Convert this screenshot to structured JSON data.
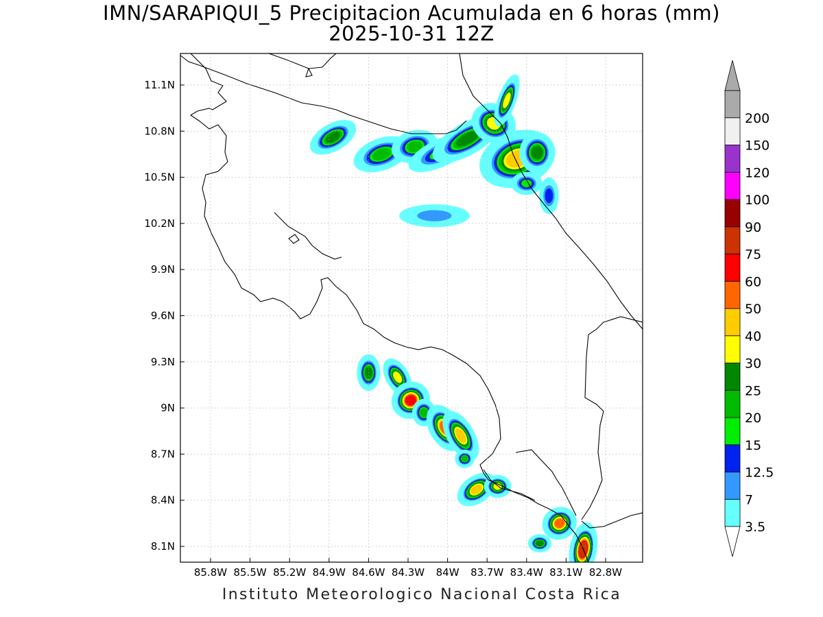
{
  "header": {
    "title": "IMN/SARAPIQUI_5 Precipitacion Acumulada en 6 horas (mm)",
    "subtitle": "2025-10-31 12Z"
  },
  "footer": {
    "credit": "Instituto Meteorologico Nacional Costa Rica"
  },
  "map": {
    "lat_range": [
      8.0,
      11.3
    ],
    "lon_range": [
      -86.1,
      -83.1
    ],
    "lat_ticks": [
      {
        "value": 11.1,
        "label": "11.1N"
      },
      {
        "value": 10.8,
        "label": "10.8N"
      },
      {
        "value": 10.5,
        "label": "10.5N"
      },
      {
        "value": 10.2,
        "label": "10.2N"
      },
      {
        "value": 9.9,
        "label": "9.9N"
      },
      {
        "value": 9.6,
        "label": "9.6N"
      },
      {
        "value": 9.3,
        "label": "9.3N"
      },
      {
        "value": 9.0,
        "label": "9N"
      },
      {
        "value": 8.7,
        "label": "8.7N"
      },
      {
        "value": 8.4,
        "label": "8.4N"
      },
      {
        "value": 8.1,
        "label": "8.1N"
      }
    ],
    "lon_ticks": [
      {
        "value": -85.8,
        "label": "85.8W"
      },
      {
        "value": -85.5,
        "label": "85.5W"
      },
      {
        "value": -85.2,
        "label": "85.2W"
      },
      {
        "value": -84.9,
        "label": "84.9W"
      },
      {
        "value": -84.6,
        "label": "84.6W"
      },
      {
        "value": -84.3,
        "label": "84.3W"
      },
      {
        "value": -84.0,
        "label": "84W"
      },
      {
        "value": -83.7,
        "label": "83.7W"
      },
      {
        "value": -83.4,
        "label": "83.4W"
      },
      {
        "value": -83.1,
        "label": "83.1W"
      },
      {
        "value": -82.8,
        "label": "82.8W"
      }
    ],
    "grid": "dotted",
    "precip_cells": [
      {
        "lon": -84.87,
        "lat": 10.76,
        "rx": 0.13,
        "ry": 0.06,
        "rot": -30,
        "max": 27
      },
      {
        "lon": -84.5,
        "lat": 10.65,
        "rx": 0.15,
        "ry": 0.07,
        "rot": -20,
        "max": 20
      },
      {
        "lon": -84.25,
        "lat": 10.7,
        "rx": 0.12,
        "ry": 0.07,
        "rot": -15,
        "max": 22
      },
      {
        "lon": -84.05,
        "lat": 10.66,
        "rx": 0.18,
        "ry": 0.06,
        "rot": -25,
        "max": 15
      },
      {
        "lon": -83.85,
        "lat": 10.75,
        "rx": 0.2,
        "ry": 0.07,
        "rot": -30,
        "max": 26
      },
      {
        "lon": -83.65,
        "lat": 10.85,
        "rx": 0.1,
        "ry": 0.1,
        "rot": -60,
        "max": 38
      },
      {
        "lon": -83.55,
        "lat": 11.0,
        "rx": 0.14,
        "ry": 0.04,
        "rot": -70,
        "max": 32
      },
      {
        "lon": -83.47,
        "lat": 10.62,
        "rx": 0.2,
        "ry": 0.12,
        "rot": -20,
        "max": 42
      },
      {
        "lon": -83.32,
        "lat": 10.66,
        "rx": 0.09,
        "ry": 0.09,
        "rot": 0,
        "max": 28
      },
      {
        "lon": -83.4,
        "lat": 10.46,
        "rx": 0.08,
        "ry": 0.05,
        "rot": 0,
        "max": 18
      },
      {
        "lon": -83.23,
        "lat": 10.38,
        "rx": 0.05,
        "ry": 0.08,
        "rot": 0,
        "max": 14
      },
      {
        "lon": -84.1,
        "lat": 10.25,
        "rx": 0.18,
        "ry": 0.05,
        "rot": 0,
        "max": 10
      },
      {
        "lon": -84.6,
        "lat": 9.23,
        "rx": 0.06,
        "ry": 0.08,
        "rot": 0,
        "max": 28
      },
      {
        "lon": -84.38,
        "lat": 9.2,
        "rx": 0.06,
        "ry": 0.09,
        "rot": -30,
        "max": 34
      },
      {
        "lon": -84.28,
        "lat": 9.05,
        "rx": 0.1,
        "ry": 0.08,
        "rot": -30,
        "max": 62
      },
      {
        "lon": -84.18,
        "lat": 8.97,
        "rx": 0.06,
        "ry": 0.06,
        "rot": 0,
        "max": 24
      },
      {
        "lon": -84.02,
        "lat": 8.87,
        "rx": 0.08,
        "ry": 0.11,
        "rot": -30,
        "max": 52
      },
      {
        "lon": -83.9,
        "lat": 8.82,
        "rx": 0.07,
        "ry": 0.12,
        "rot": -30,
        "max": 48
      },
      {
        "lon": -83.87,
        "lat": 8.67,
        "rx": 0.05,
        "ry": 0.04,
        "rot": 0,
        "max": 20
      },
      {
        "lon": -83.78,
        "lat": 8.47,
        "rx": 0.11,
        "ry": 0.06,
        "rot": -35,
        "max": 45
      },
      {
        "lon": -83.62,
        "lat": 8.49,
        "rx": 0.07,
        "ry": 0.05,
        "rot": 0,
        "max": 36
      },
      {
        "lon": -83.15,
        "lat": 8.25,
        "rx": 0.09,
        "ry": 0.07,
        "rot": -30,
        "max": 55
      },
      {
        "lon": -83.3,
        "lat": 8.12,
        "rx": 0.06,
        "ry": 0.04,
        "rot": 0,
        "max": 28
      },
      {
        "lon": -82.97,
        "lat": 8.08,
        "rx": 0.07,
        "ry": 0.12,
        "rot": 10,
        "max": 85
      }
    ]
  },
  "colorbar": {
    "levels": [
      "3.5",
      "7",
      "12.5",
      "15",
      "20",
      "25",
      "30",
      "40",
      "50",
      "60",
      "75",
      "90",
      "100",
      "120",
      "150",
      "200"
    ],
    "colors": [
      "#66ffff",
      "#3399ff",
      "#0022ee",
      "#00ee00",
      "#00bb00",
      "#008800",
      "#ffff00",
      "#ffcc00",
      "#ff6600",
      "#ff0000",
      "#cc3300",
      "#990000",
      "#ff00ff",
      "#9933cc",
      "#f0f0f0",
      "#aaaaaa"
    ],
    "upper_arrow_color": "#aaaaaa",
    "lower_arrow_color": "#ffffff"
  }
}
